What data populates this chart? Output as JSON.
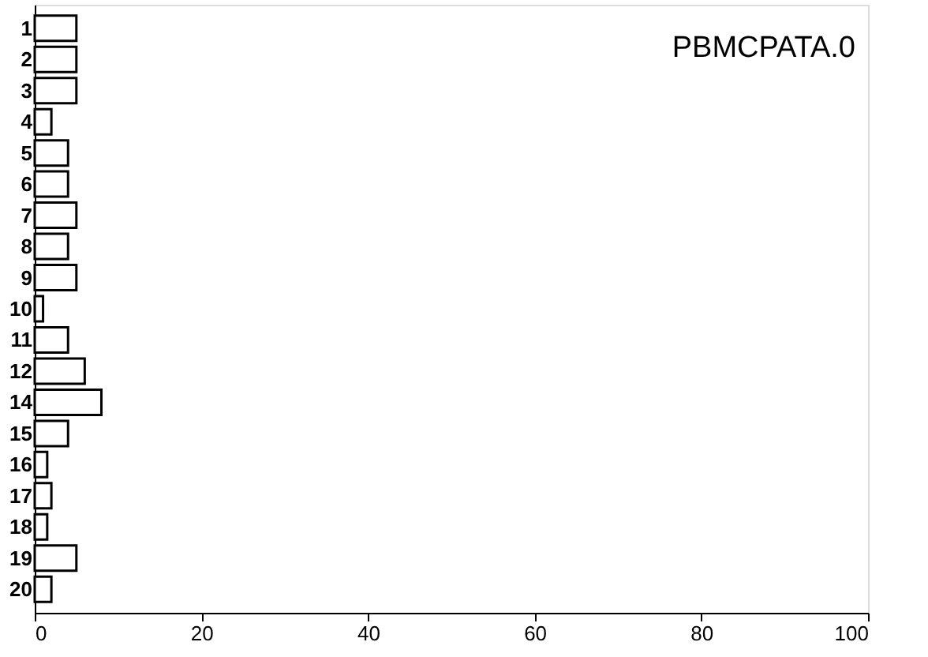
{
  "chart_data": {
    "type": "bar",
    "orientation": "horizontal",
    "categories": [
      "1",
      "2",
      "3",
      "4",
      "5",
      "6",
      "7",
      "8",
      "9",
      "10",
      "11",
      "12",
      "14",
      "15",
      "16",
      "17",
      "18",
      "19",
      "20"
    ],
    "values": [
      5,
      5,
      5,
      2,
      4,
      4,
      5,
      4,
      5,
      1,
      4,
      6,
      8,
      4,
      1.5,
      2,
      1.5,
      5,
      2
    ],
    "color": "#ffffff",
    "xlim": [
      0,
      100
    ],
    "xticks": [
      0,
      20,
      40,
      60,
      80,
      100
    ],
    "grid": false,
    "annotations": [
      "PBMCPATA.0"
    ]
  }
}
